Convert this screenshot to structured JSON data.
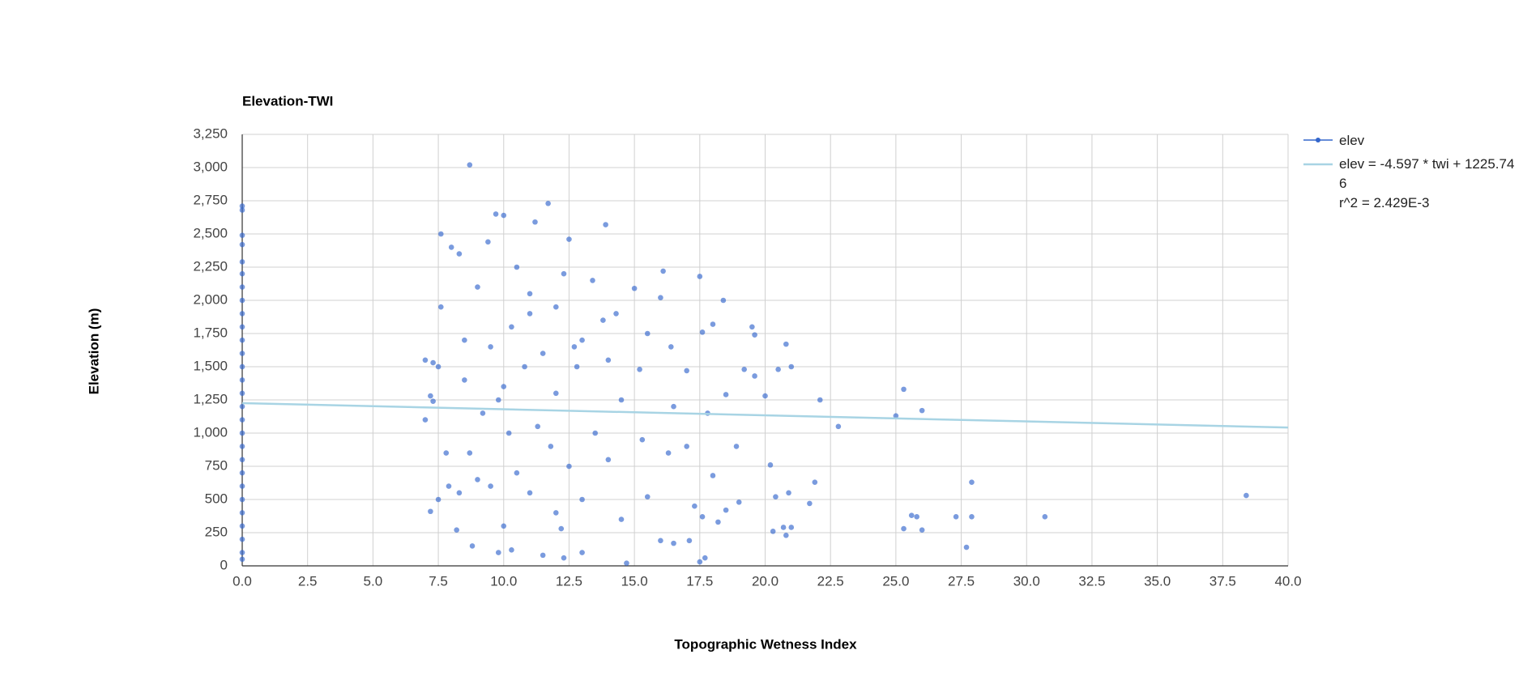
{
  "chart_data": {
    "type": "scatter",
    "title": "Elevation-TWI",
    "x_label": "Topographic Wetness Index",
    "y_label": "Elevation (m)",
    "annotation": "r^2 = 2.429E-3",
    "xlim": [
      0,
      40
    ],
    "ylim": [
      0,
      3250
    ],
    "xticks": [
      {
        "value": 0,
        "label": "0.0"
      },
      {
        "value": 2.5,
        "label": "2.5"
      },
      {
        "value": 5,
        "label": "5.0"
      },
      {
        "value": 7.5,
        "label": "7.5"
      },
      {
        "value": 10,
        "label": "10.0"
      },
      {
        "value": 12.5,
        "label": "12.5"
      },
      {
        "value": 15,
        "label": "15.0"
      },
      {
        "value": 17.5,
        "label": "17.5"
      },
      {
        "value": 20,
        "label": "20.0"
      },
      {
        "value": 22.5,
        "label": "22.5"
      },
      {
        "value": 25,
        "label": "25.0"
      },
      {
        "value": 27.5,
        "label": "27.5"
      },
      {
        "value": 30,
        "label": "30.0"
      },
      {
        "value": 32.5,
        "label": "32.5"
      },
      {
        "value": 35,
        "label": "35.0"
      },
      {
        "value": 37.5,
        "label": "37.5"
      },
      {
        "value": 40,
        "label": "40.0"
      }
    ],
    "yticks": [
      0,
      250,
      500,
      750,
      {
        "value": 1000,
        "label": "1,000"
      },
      {
        "value": 1250,
        "label": "1,250"
      },
      {
        "value": 1500,
        "label": "1,500"
      },
      {
        "value": 1750,
        "label": "1,750"
      },
      {
        "value": 2000,
        "label": "2,000"
      },
      {
        "value": 2250,
        "label": "2,250"
      },
      {
        "value": 2500,
        "label": "2,500"
      },
      {
        "value": 2750,
        "label": "2,750"
      },
      {
        "value": 3000,
        "label": "3,000"
      },
      {
        "value": 3250,
        "label": "3,250"
      }
    ],
    "grid": true,
    "series": [
      {
        "name": "elev",
        "color": "#3366cc",
        "x": [
          0,
          0,
          0,
          0,
          0,
          0,
          0,
          0,
          0,
          0,
          0,
          0,
          0,
          0,
          0,
          0,
          0,
          0,
          0,
          0,
          0,
          0,
          0,
          0,
          0,
          0,
          0,
          0,
          8.7,
          11.7,
          13.9,
          9.7,
          10.0,
          7.6,
          12.5,
          11.2,
          9.4,
          8.3,
          8.0,
          10.5,
          12.3,
          13.4,
          16.1,
          17.5,
          15.0,
          18.4,
          16.0,
          14.3,
          9.0,
          11.0,
          12.0,
          10.3,
          7.6,
          8.5,
          9.5,
          11.5,
          13.0,
          15.5,
          17.6,
          18.0,
          19.5,
          19.6,
          20.8,
          16.4,
          14.0,
          7.0,
          7.3,
          12.8,
          15.2,
          17.0,
          19.2,
          20.5,
          19.6,
          18.5,
          21.0,
          22.1,
          25.3,
          25.0,
          26.0,
          22.8,
          20.0,
          17.8,
          16.5,
          14.5,
          12.0,
          10.0,
          8.5,
          7.2,
          7.3,
          7.0,
          7.5,
          9.2,
          11.3,
          13.5,
          15.3,
          17.0,
          18.9,
          16.3,
          14.0,
          12.5,
          10.5,
          8.7,
          7.8,
          7.9,
          8.3,
          7.2,
          7.5,
          9.5,
          11.0,
          13.0,
          15.5,
          17.3,
          18.0,
          19.0,
          18.5,
          20.2,
          21.7,
          21.9,
          20.4,
          20.9,
          17.6,
          18.2,
          16.0,
          16.5,
          17.1,
          20.3,
          20.7,
          20.8,
          21.0,
          25.3,
          25.6,
          25.8,
          26.0,
          27.3,
          27.9,
          27.9,
          27.7,
          30.7,
          38.4,
          8.2,
          8.8,
          9.8,
          10.3,
          11.5,
          12.3,
          13.0,
          14.7,
          17.5,
          17.7,
          12.0,
          10.0,
          14.5,
          11.0,
          10.8,
          9.8,
          12.7,
          13.8,
          10.2,
          11.8,
          9.0,
          12.2
        ],
        "values": [
          2710,
          2680,
          2490,
          2420,
          2290,
          2200,
          2100,
          2000,
          1900,
          1800,
          1700,
          1600,
          1500,
          1400,
          1300,
          1200,
          1100,
          1000,
          900,
          800,
          700,
          600,
          500,
          400,
          300,
          200,
          100,
          50,
          3020,
          2730,
          2570,
          2650,
          2640,
          2500,
          2460,
          2590,
          2440,
          2350,
          2400,
          2250,
          2200,
          2150,
          2220,
          2180,
          2090,
          2000,
          2020,
          1900,
          2100,
          2050,
          1950,
          1800,
          1950,
          1700,
          1650,
          1600,
          1700,
          1750,
          1760,
          1820,
          1800,
          1740,
          1670,
          1650,
          1550,
          1550,
          1530,
          1500,
          1480,
          1470,
          1480,
          1480,
          1430,
          1290,
          1500,
          1250,
          1330,
          1130,
          1170,
          1050,
          1280,
          1150,
          1200,
          1250,
          1300,
          1350,
          1400,
          1280,
          1240,
          1100,
          1500,
          1150,
          1050,
          1000,
          950,
          900,
          900,
          850,
          800,
          750,
          700,
          850,
          850,
          600,
          550,
          410,
          500,
          600,
          550,
          500,
          520,
          450,
          680,
          480,
          420,
          760,
          470,
          630,
          520,
          550,
          370,
          330,
          190,
          170,
          190,
          260,
          290,
          230,
          290,
          280,
          380,
          370,
          270,
          370,
          370,
          630,
          140,
          370,
          530,
          270,
          150,
          100,
          120,
          80,
          60,
          100,
          20,
          30,
          60,
          400,
          300,
          350,
          1900,
          1500,
          1250,
          1650,
          1850,
          1000,
          900,
          650,
          280
        ]
      },
      {
        "name": "elev = -4.597 * twi + 1225.746",
        "color": "#a8d4e4",
        "x": [
          0,
          40
        ],
        "values": [
          1225.7,
          1041.9
        ]
      }
    ]
  }
}
